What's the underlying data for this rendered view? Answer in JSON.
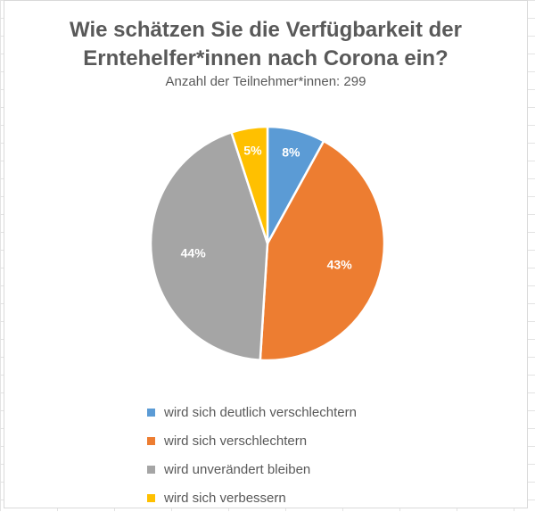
{
  "chart_data": {
    "type": "pie",
    "title_lines": [
      "Wie schätzen Sie die Verfügbarkeit der",
      "Erntehelfer*innen nach Corona ein?"
    ],
    "subtitle": "Anzahl der Teilnehmer*innen: 299",
    "slices": [
      {
        "label": "wird sich deutlich verschlechtern",
        "value": 8,
        "display": "8%",
        "color": "#5B9BD5"
      },
      {
        "label": "wird sich verschlechtern",
        "value": 43,
        "display": "43%",
        "color": "#ED7D31"
      },
      {
        "label": "wird unverändert bleiben",
        "value": 44,
        "display": "44%",
        "color": "#A5A5A5"
      },
      {
        "label": "wird sich verbessern",
        "value": 5,
        "display": "5%",
        "color": "#FFC000"
      }
    ],
    "legend_position": "bottom"
  }
}
